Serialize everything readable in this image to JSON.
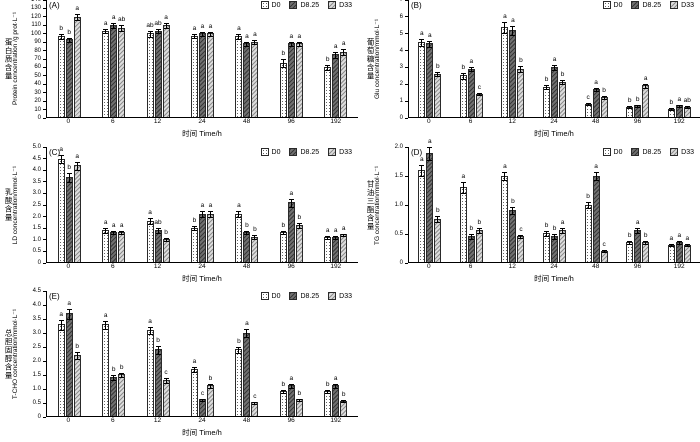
{
  "figure": {
    "background": "#ffffff",
    "series_labels": [
      "D0",
      "D8.25",
      "D33"
    ],
    "series_patterns": [
      "dots",
      "dark-hatch",
      "light-hatch"
    ],
    "series_colors": [
      "#ffffff",
      "#707070",
      "#dcdcdc"
    ],
    "x_axis_title": "时间 Time/h"
  },
  "chart_data": [
    {
      "type": "bar",
      "panel": "(A)",
      "ylabel_zh": "蛋白质含量",
      "ylabel_en": "Protein concentration /g prot·L⁻¹",
      "xlabel": "时间 Time/h",
      "categories": [
        "0",
        "6",
        "12",
        "24",
        "48",
        "96",
        "192"
      ],
      "ylim": [
        0,
        140
      ],
      "ytick_step": 10,
      "ytick_decimals": 0,
      "grid": false,
      "legend_position": "top-right",
      "series": [
        {
          "name": "D0",
          "values": [
            97,
            103,
            100,
            97,
            97,
            65,
            60
          ],
          "err": [
            4,
            3,
            4,
            3,
            4,
            5,
            4
          ],
          "letters": [
            "b",
            "a",
            "ab",
            "a",
            "a",
            "b",
            "b"
          ]
        },
        {
          "name": "D8.25",
          "values": [
            93,
            110,
            103,
            100,
            88,
            88,
            75
          ],
          "err": [
            3,
            4,
            3,
            3,
            3,
            3,
            4
          ],
          "letters": [
            "b",
            "a",
            "ab",
            "a",
            "a",
            "a",
            "a"
          ]
        },
        {
          "name": "D33",
          "values": [
            120,
            107,
            110,
            100,
            90,
            88,
            78
          ],
          "err": [
            4,
            4,
            4,
            3,
            3,
            3,
            4
          ],
          "letters": [
            "a",
            "ab",
            "a",
            "a",
            "a",
            "a",
            "a"
          ]
        }
      ]
    },
    {
      "type": "bar",
      "panel": "(B)",
      "ylabel_zh": "葡萄糖含量",
      "ylabel_en": "Glu concentration/mmol·L⁻¹",
      "xlabel": "时间 Time/h",
      "categories": [
        "0",
        "6",
        "12",
        "24",
        "48",
        "96",
        "192"
      ],
      "ylim": [
        0,
        7
      ],
      "ytick_step": 1,
      "ytick_decimals": 0,
      "grid": false,
      "legend_position": "top-right",
      "series": [
        {
          "name": "D0",
          "values": [
            4.5,
            2.5,
            5.4,
            1.8,
            0.8,
            0.6,
            0.5
          ],
          "err": [
            0.25,
            0.2,
            0.35,
            0.15,
            0.1,
            0.08,
            0.06
          ],
          "letters": [
            "a",
            "b",
            "a",
            "b",
            "c",
            "b",
            "b"
          ]
        },
        {
          "name": "D8.25",
          "values": [
            4.4,
            2.9,
            5.2,
            3.0,
            1.7,
            0.7,
            0.7
          ],
          "err": [
            0.2,
            0.15,
            0.3,
            0.2,
            0.12,
            0.08,
            0.06
          ],
          "letters": [
            "a",
            "a",
            "a",
            "a",
            "a",
            "b",
            "a"
          ]
        },
        {
          "name": "D33",
          "values": [
            2.6,
            1.4,
            2.9,
            2.1,
            1.2,
            1.9,
            0.6
          ],
          "err": [
            0.15,
            0.1,
            0.2,
            0.15,
            0.1,
            0.15,
            0.06
          ],
          "letters": [
            "b",
            "c",
            "b",
            "b",
            "b",
            "a",
            "ab"
          ]
        }
      ]
    },
    {
      "type": "bar",
      "panel": "(C)",
      "ylabel_zh": "乳酸含量",
      "ylabel_en": "LD concentration/mmol·L⁻¹",
      "xlabel": "时间 Time/h",
      "categories": [
        "0",
        "6",
        "12",
        "24",
        "48",
        "96",
        "192"
      ],
      "ylim": [
        0,
        5
      ],
      "ytick_step": 0.5,
      "ytick_decimals": 1,
      "grid": false,
      "legend_position": "top-right",
      "series": [
        {
          "name": "D0",
          "values": [
            4.5,
            1.4,
            1.8,
            1.5,
            2.1,
            1.3,
            1.1
          ],
          "err": [
            0.2,
            0.12,
            0.15,
            0.12,
            0.15,
            0.1,
            0.08
          ],
          "letters": [
            "a",
            "a",
            "a",
            "b",
            "a",
            "b",
            "a"
          ]
        },
        {
          "name": "D8.25",
          "values": [
            3.7,
            1.3,
            1.4,
            2.1,
            1.3,
            2.6,
            1.1
          ],
          "err": [
            0.2,
            0.1,
            0.12,
            0.15,
            0.1,
            0.2,
            0.08
          ],
          "letters": [
            "b",
            "a",
            "ab",
            "a",
            "b",
            "a",
            "a"
          ]
        },
        {
          "name": "D33",
          "values": [
            4.2,
            1.3,
            1.0,
            2.1,
            1.1,
            1.6,
            1.2
          ],
          "err": [
            0.2,
            0.1,
            0.1,
            0.15,
            0.1,
            0.12,
            0.08
          ],
          "letters": [
            "a",
            "a",
            "b",
            "a",
            "b",
            "b",
            "a"
          ]
        }
      ]
    },
    {
      "type": "bar",
      "panel": "(D)",
      "ylabel_zh": "甘油三酯含量",
      "ylabel_en": "TG concentration/mmol·L⁻¹",
      "xlabel": "时间 Time/h",
      "categories": [
        "0",
        "6",
        "12",
        "24",
        "48",
        "96",
        "192"
      ],
      "ylim": [
        0,
        2
      ],
      "ytick_step": 0.5,
      "ytick_decimals": 1,
      "grid": false,
      "legend_position": "top-right",
      "series": [
        {
          "name": "D0",
          "values": [
            1.6,
            1.3,
            1.5,
            0.5,
            1.0,
            0.35,
            0.3
          ],
          "err": [
            0.1,
            0.1,
            0.08,
            0.05,
            0.06,
            0.04,
            0.03
          ],
          "letters": [
            "a",
            "a",
            "a",
            "b",
            "b",
            "b",
            "a"
          ]
        },
        {
          "name": "D8.25",
          "values": [
            1.9,
            0.45,
            0.9,
            0.45,
            1.5,
            0.55,
            0.35
          ],
          "err": [
            0.12,
            0.05,
            0.07,
            0.05,
            0.08,
            0.05,
            0.04
          ],
          "letters": [
            "a",
            "b",
            "b",
            "b",
            "a",
            "a",
            "a"
          ]
        },
        {
          "name": "D33",
          "values": [
            0.75,
            0.55,
            0.45,
            0.55,
            0.2,
            0.35,
            0.3
          ],
          "err": [
            0.06,
            0.05,
            0.04,
            0.05,
            0.03,
            0.04,
            0.03
          ],
          "letters": [
            "b",
            "b",
            "c",
            "a",
            "c",
            "b",
            "a"
          ]
        }
      ]
    },
    {
      "type": "bar",
      "panel": "(E)",
      "ylabel_zh": "总胆固醇含量",
      "ylabel_en": "T-CHO concentration/mmol·L⁻¹",
      "xlabel": "时间 Time/h",
      "categories": [
        "0",
        "6",
        "12",
        "24",
        "48",
        "96",
        "192"
      ],
      "ylim": [
        0,
        4.5
      ],
      "ytick_step": 0.5,
      "ytick_decimals": 1,
      "grid": false,
      "legend_position": "top-right",
      "series": [
        {
          "name": "D0",
          "values": [
            3.3,
            3.3,
            3.1,
            1.7,
            2.4,
            0.9,
            0.9
          ],
          "err": [
            0.2,
            0.15,
            0.15,
            0.1,
            0.12,
            0.08,
            0.08
          ],
          "letters": [
            "a",
            "a",
            "a",
            "a",
            "b",
            "b",
            "b"
          ]
        },
        {
          "name": "D8.25",
          "values": [
            3.7,
            1.4,
            2.4,
            0.6,
            3.0,
            1.1,
            1.1
          ],
          "err": [
            0.2,
            0.1,
            0.15,
            0.06,
            0.15,
            0.08,
            0.08
          ],
          "letters": [
            "a",
            "b",
            "b",
            "c",
            "a",
            "a",
            "a"
          ]
        },
        {
          "name": "D33",
          "values": [
            2.2,
            1.5,
            1.3,
            1.1,
            0.5,
            0.6,
            0.55
          ],
          "err": [
            0.15,
            0.1,
            0.1,
            0.08,
            0.05,
            0.06,
            0.05
          ],
          "letters": [
            "b",
            "b",
            "c",
            "b",
            "c",
            "b",
            "b"
          ]
        }
      ]
    }
  ]
}
